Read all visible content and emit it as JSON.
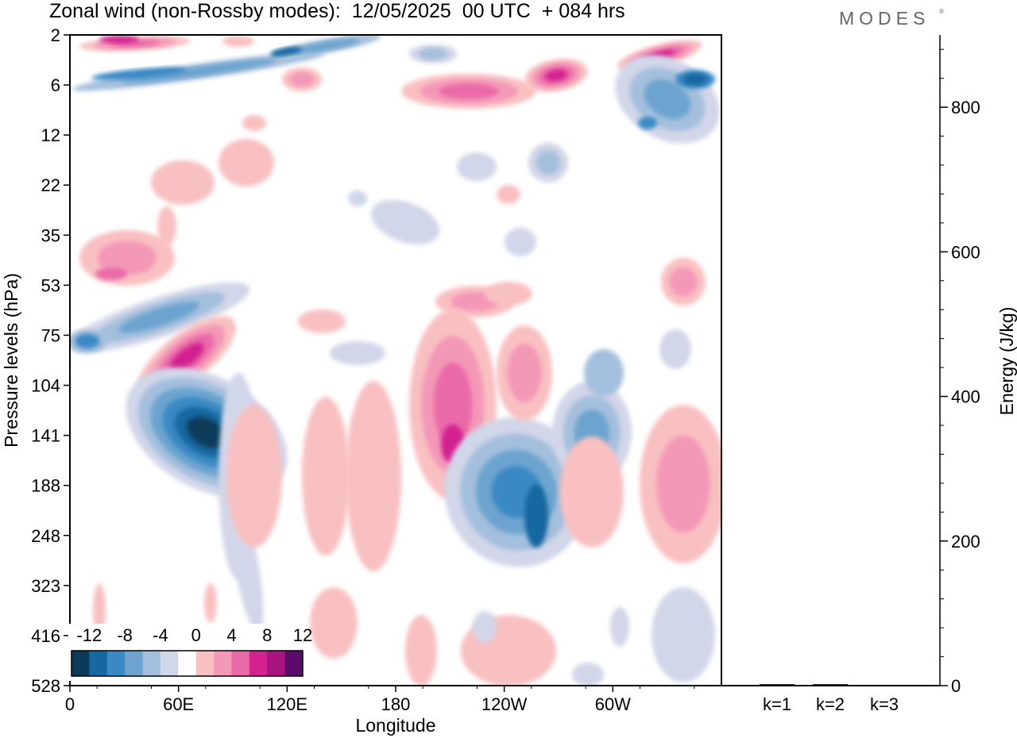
{
  "title": "Zonal wind (non-Rossby modes):  12/05/2025  00 UTC  + 084 hrs",
  "brand": "MODES",
  "brand_mark": "®",
  "chart_data": [
    {
      "type": "heatmap",
      "xlabel": "Longitude",
      "ylabel": "Pressure levels (hPa)",
      "x_ticks": [
        "0",
        "60E",
        "120E",
        "180",
        "120W",
        "60W"
      ],
      "y_ticks": [
        "2",
        "6",
        "12",
        "22",
        "35",
        "53",
        "75",
        "104",
        "141",
        "188",
        "248",
        "323",
        "416",
        "528"
      ],
      "y_scale": "inverted (top = 2 hPa, bottom = 528 hPa)",
      "colorbar": {
        "tick_labels": [
          "-12",
          "-8",
          "-4",
          "0",
          "4",
          "8",
          "12"
        ],
        "levels": [
          -14,
          -12,
          -10,
          -8,
          -6,
          -4,
          -2,
          2,
          4,
          6,
          8,
          10,
          12,
          14
        ],
        "colors": [
          "#0c3b5a",
          "#1568a0",
          "#3a89c4",
          "#6ca4cf",
          "#a4bfdd",
          "#d2d6e9",
          "#ffffff",
          "#f9c0c1",
          "#f498b7",
          "#ea6aa8",
          "#d3218f",
          "#a8137f",
          "#5b0b6b"
        ]
      },
      "features": [
        {
          "name": "upper blue band",
          "lon": [
            0,
            150
          ],
          "level": [
            5,
            7
          ],
          "value": -6
        },
        {
          "name": "upper pink band",
          "lon": [
            5,
            60
          ],
          "level": [
            2,
            3
          ],
          "value": 8
        },
        {
          "name": "upper pink band east",
          "lon": [
            190,
            260
          ],
          "level": [
            4,
            8
          ],
          "value": 8
        },
        {
          "name": "upper blue band east",
          "lon": [
            310,
            360
          ],
          "level": [
            5,
            12
          ],
          "value": -6
        },
        {
          "name": "tropopause blue core",
          "lon": [
            55,
            90
          ],
          "level": [
            104,
            188
          ],
          "value": -14
        },
        {
          "name": "pink core near 80E",
          "lon": [
            60,
            90
          ],
          "level": [
            75,
            104
          ],
          "value": 10
        },
        {
          "name": "blue core near 115W",
          "lon": [
            225,
            265
          ],
          "level": [
            141,
            248
          ],
          "value": -10
        },
        {
          "name": "pink core near 170W",
          "lon": [
            180,
            220
          ],
          "level": [
            104,
            188
          ],
          "value": 8
        }
      ]
    },
    {
      "type": "bar",
      "categories": [
        "k=1",
        "k=2",
        "k=3"
      ],
      "values": [
        2,
        2,
        1
      ],
      "ylabel": "Energy (J/kg)",
      "ylim": [
        0,
        900
      ],
      "y_ticks": [
        "0",
        "200",
        "400",
        "600",
        "800"
      ]
    }
  ]
}
